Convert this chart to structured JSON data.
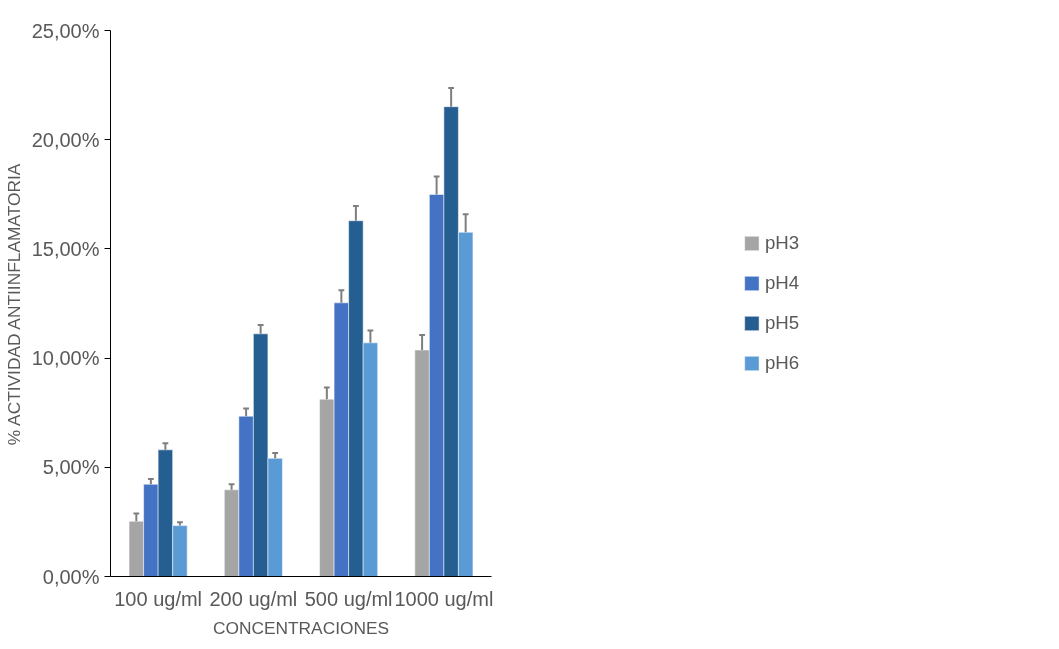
{
  "chart_data": {
    "type": "bar",
    "xlabel": "CONCENTRACIONES",
    "ylabel": "% ACTIVIDAD ANTIINFLAMATORIA",
    "categories": [
      "100 ug/ml",
      "200 ug/ml",
      "500 ug/ml",
      "1000 ug/ml"
    ],
    "series": [
      {
        "name": "pH3",
        "color": "#a5a5a5",
        "values": [
          2.53,
          3.97,
          8.12,
          10.37
        ],
        "errors": [
          [
            2.53,
            2.88
          ],
          [
            3.97,
            4.22
          ],
          [
            8.12,
            8.65
          ],
          [
            10.37,
            11.06
          ]
        ]
      },
      {
        "name": "pH4",
        "color": "#4472c4",
        "values": [
          4.22,
          7.34,
          12.53,
          17.49
        ],
        "errors": [
          [
            4.22,
            4.47
          ],
          [
            7.34,
            7.69
          ],
          [
            12.53,
            13.11
          ],
          [
            17.49,
            18.32
          ]
        ]
      },
      {
        "name": "pH5",
        "color": "#255e91",
        "values": [
          5.8,
          11.11,
          16.29,
          21.51
        ],
        "errors": [
          [
            5.8,
            6.1
          ],
          [
            11.11,
            11.51
          ],
          [
            16.29,
            16.97
          ],
          [
            21.51,
            22.37
          ]
        ]
      },
      {
        "name": "pH6",
        "color": "#5b9bd5",
        "values": [
          2.33,
          5.41,
          10.7,
          15.76
        ],
        "errors": [
          [
            2.33,
            2.48
          ],
          [
            5.41,
            5.66
          ],
          [
            10.7,
            11.26
          ],
          [
            15.76,
            16.59
          ]
        ]
      }
    ],
    "ylim": [
      0,
      25
    ],
    "yticks": [
      {
        "value": 0,
        "label": "0,00%"
      },
      {
        "value": 5,
        "label": "5,00%"
      },
      {
        "value": 10,
        "label": "10,00%"
      },
      {
        "value": 15,
        "label": "15,00%"
      },
      {
        "value": 20,
        "label": "20,00%"
      },
      {
        "value": 25,
        "label": "25,00%"
      }
    ],
    "grid": false,
    "legend": "right"
  }
}
